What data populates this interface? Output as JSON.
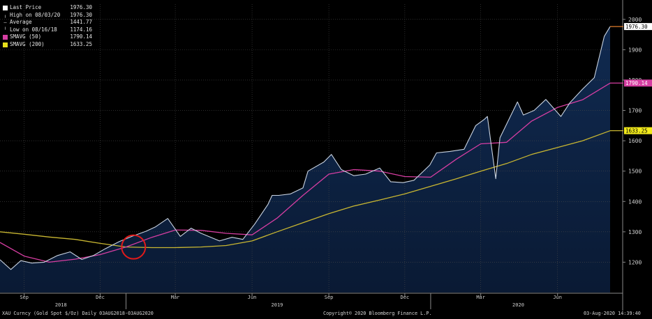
{
  "legend": [
    {
      "label": "Last Price",
      "value": "1976.30",
      "marker": "white-square"
    },
    {
      "label": "High on 08/03/20",
      "value": "1976.30",
      "marker": "high-tick"
    },
    {
      "label": "Average",
      "value": "1441.77",
      "marker": "avg-tick"
    },
    {
      "label": "Low on 08/16/18",
      "value": "1174.16",
      "marker": "low-tick"
    },
    {
      "label": "SMAVG (50)",
      "value": "1790.14",
      "marker": "magenta-square"
    },
    {
      "label": "SMAVG (200)",
      "value": "1633.25",
      "marker": "yellow-square"
    }
  ],
  "footer": {
    "security": "XAU Curncy (Gold Spot   $/Oz)  Daily 03AUG2018-03AUG2020",
    "copyright": "Copyright© 2020 Bloomberg Finance L.P.",
    "timestamp": "03-Aug-2020  14:39:40"
  },
  "colors": {
    "background": "#000000",
    "area_top": "#102a50",
    "area_bottom": "#0a1a34",
    "price_line": "#c9d3e1",
    "sma50": "#d63ea2",
    "sma200": "#c8b631",
    "grid": "#4a4a4a",
    "axis_text": "#cfcfcf",
    "highlight_circle": "#e11a1a"
  },
  "chart_data": {
    "type": "line",
    "title": "",
    "xlabel": "",
    "ylabel": "",
    "ylim": [
      1100,
      2050
    ],
    "y_ticks": [
      1200,
      1300,
      1400,
      1500,
      1600,
      1700,
      1800,
      1900,
      2000
    ],
    "x_ticks": [
      {
        "date": "2018-09-01",
        "label": "Sep"
      },
      {
        "date": "2018-12-01",
        "label": "Dec"
      },
      {
        "date": "2019-03-01",
        "label": "Mar"
      },
      {
        "date": "2019-06-01",
        "label": "Jun"
      },
      {
        "date": "2019-09-01",
        "label": "Sep"
      },
      {
        "date": "2019-12-01",
        "label": "Dec"
      },
      {
        "date": "2020-03-01",
        "label": "Mar"
      },
      {
        "date": "2020-06-01",
        "label": "Jun"
      }
    ],
    "year_labels": [
      {
        "date": "2018-10-15",
        "label": "2018"
      },
      {
        "date": "2019-07-01",
        "label": "2019"
      },
      {
        "date": "2020-04-15",
        "label": "2020"
      }
    ],
    "year_separators": [
      "2019-01-01",
      "2020-01-01"
    ],
    "grid": true,
    "price_tags": [
      {
        "series": "Last Price",
        "value": 1976.3,
        "label": "1976.30"
      },
      {
        "series": "SMAVG (50)",
        "value": 1790.14,
        "label": "1790.14"
      },
      {
        "series": "SMAVG (200)",
        "value": 1633.25,
        "label": "1633.25"
      }
    ],
    "annotation": {
      "type": "circle",
      "date": "2019-01-10",
      "value": 1250,
      "description": "SMAVG (50) crosses above SMAVG (200)"
    },
    "series": [
      {
        "name": "Last Price",
        "style": "area",
        "points": [
          [
            "2018-08-03",
            1208
          ],
          [
            "2018-08-16",
            1176
          ],
          [
            "2018-08-28",
            1205
          ],
          [
            "2018-09-10",
            1197
          ],
          [
            "2018-09-25",
            1200
          ],
          [
            "2018-10-11",
            1222
          ],
          [
            "2018-10-26",
            1234
          ],
          [
            "2018-11-09",
            1209
          ],
          [
            "2018-11-23",
            1222
          ],
          [
            "2018-12-07",
            1244
          ],
          [
            "2018-12-24",
            1268
          ],
          [
            "2019-01-08",
            1285
          ],
          [
            "2019-01-25",
            1302
          ],
          [
            "2019-02-05",
            1316
          ],
          [
            "2019-02-20",
            1344
          ],
          [
            "2019-03-07",
            1285
          ],
          [
            "2019-03-20",
            1312
          ],
          [
            "2019-04-01",
            1295
          ],
          [
            "2019-04-23",
            1270
          ],
          [
            "2019-05-08",
            1282
          ],
          [
            "2019-05-21",
            1275
          ],
          [
            "2019-06-04",
            1325
          ],
          [
            "2019-06-20",
            1390
          ],
          [
            "2019-06-25",
            1420
          ],
          [
            "2019-07-03",
            1420
          ],
          [
            "2019-07-17",
            1425
          ],
          [
            "2019-08-01",
            1445
          ],
          [
            "2019-08-07",
            1500
          ],
          [
            "2019-08-26",
            1530
          ],
          [
            "2019-09-04",
            1555
          ],
          [
            "2019-09-16",
            1505
          ],
          [
            "2019-10-01",
            1485
          ],
          [
            "2019-10-15",
            1490
          ],
          [
            "2019-11-01",
            1510
          ],
          [
            "2019-11-14",
            1465
          ],
          [
            "2019-11-29",
            1462
          ],
          [
            "2019-12-12",
            1470
          ],
          [
            "2019-12-31",
            1520
          ],
          [
            "2020-01-08",
            1560
          ],
          [
            "2020-01-24",
            1565
          ],
          [
            "2020-02-10",
            1572
          ],
          [
            "2020-02-24",
            1650
          ],
          [
            "2020-03-05",
            1670
          ],
          [
            "2020-03-09",
            1680
          ],
          [
            "2020-03-19",
            1475
          ],
          [
            "2020-03-24",
            1610
          ],
          [
            "2020-04-14",
            1728
          ],
          [
            "2020-04-21",
            1685
          ],
          [
            "2020-05-04",
            1700
          ],
          [
            "2020-05-18",
            1736
          ],
          [
            "2020-06-05",
            1680
          ],
          [
            "2020-06-16",
            1726
          ],
          [
            "2020-07-01",
            1770
          ],
          [
            "2020-07-15",
            1808
          ],
          [
            "2020-07-27",
            1944
          ],
          [
            "2020-08-03",
            1976
          ]
        ]
      },
      {
        "name": "SMAVG (50)",
        "points": [
          [
            "2018-08-03",
            1265
          ],
          [
            "2018-09-01",
            1220
          ],
          [
            "2018-10-01",
            1200
          ],
          [
            "2018-11-01",
            1210
          ],
          [
            "2018-12-01",
            1225
          ],
          [
            "2019-01-01",
            1250
          ],
          [
            "2019-02-01",
            1282
          ],
          [
            "2019-03-01",
            1306
          ],
          [
            "2019-04-01",
            1305
          ],
          [
            "2019-05-01",
            1295
          ],
          [
            "2019-06-01",
            1290
          ],
          [
            "2019-07-01",
            1345
          ],
          [
            "2019-08-01",
            1420
          ],
          [
            "2019-09-01",
            1490
          ],
          [
            "2019-10-01",
            1505
          ],
          [
            "2019-11-01",
            1500
          ],
          [
            "2019-12-01",
            1482
          ],
          [
            "2020-01-01",
            1480
          ],
          [
            "2020-02-01",
            1540
          ],
          [
            "2020-03-01",
            1590
          ],
          [
            "2020-04-01",
            1595
          ],
          [
            "2020-05-01",
            1665
          ],
          [
            "2020-06-01",
            1710
          ],
          [
            "2020-07-01",
            1735
          ],
          [
            "2020-08-03",
            1790
          ]
        ]
      },
      {
        "name": "SMAVG (200)",
        "points": [
          [
            "2018-08-03",
            1300
          ],
          [
            "2018-09-01",
            1292
          ],
          [
            "2018-10-01",
            1283
          ],
          [
            "2018-11-01",
            1275
          ],
          [
            "2018-12-01",
            1262
          ],
          [
            "2019-01-01",
            1250
          ],
          [
            "2019-02-01",
            1248
          ],
          [
            "2019-03-01",
            1248
          ],
          [
            "2019-04-01",
            1250
          ],
          [
            "2019-05-01",
            1255
          ],
          [
            "2019-06-01",
            1270
          ],
          [
            "2019-07-01",
            1300
          ],
          [
            "2019-08-01",
            1330
          ],
          [
            "2019-09-01",
            1360
          ],
          [
            "2019-10-01",
            1385
          ],
          [
            "2019-11-01",
            1405
          ],
          [
            "2019-12-01",
            1425
          ],
          [
            "2020-01-01",
            1450
          ],
          [
            "2020-02-01",
            1475
          ],
          [
            "2020-03-01",
            1500
          ],
          [
            "2020-04-01",
            1525
          ],
          [
            "2020-05-01",
            1555
          ],
          [
            "2020-06-01",
            1578
          ],
          [
            "2020-07-01",
            1600
          ],
          [
            "2020-08-03",
            1633
          ]
        ]
      }
    ]
  }
}
